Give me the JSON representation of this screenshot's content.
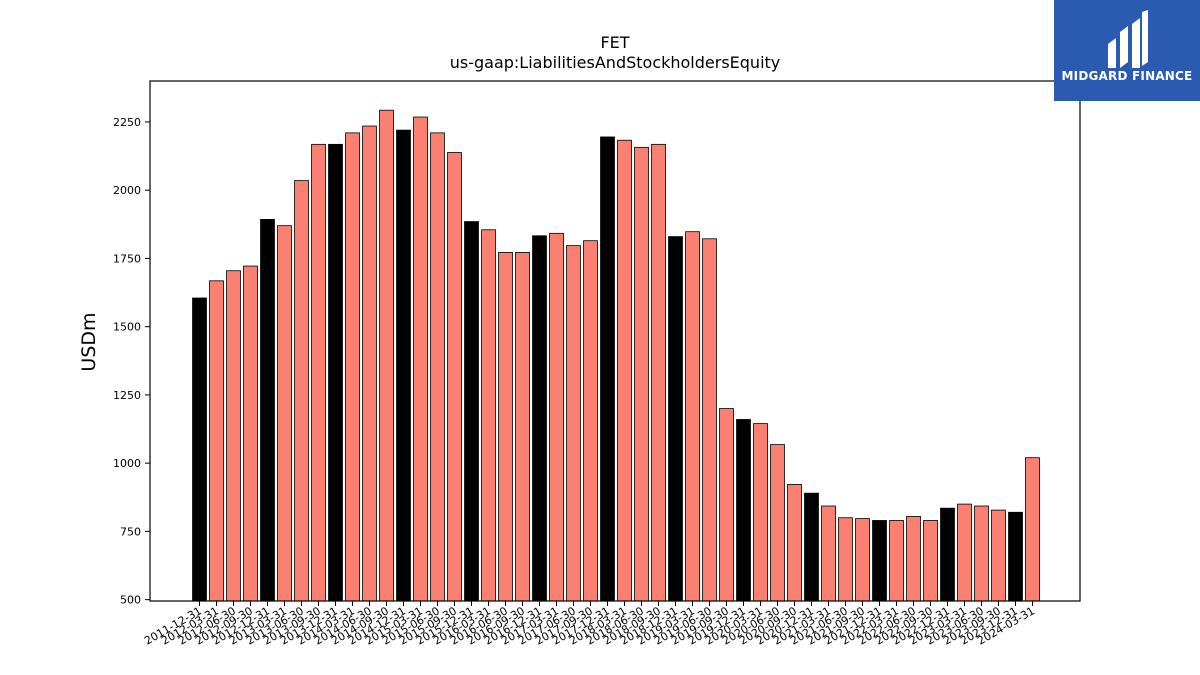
{
  "brand": {
    "name": "MIDGARD FINANCE",
    "logo_icon": "midgard-finance-logo-icon",
    "background_color": "#2a5bb1"
  },
  "chart_data": {
    "type": "bar",
    "title": "FET",
    "subtitle": "us-gaap:LiabilitiesAndStockholdersEquity",
    "xlabel": "",
    "ylabel": "USDm",
    "ylim": [
      495,
      2400
    ],
    "yticks": [
      500,
      750,
      1000,
      1250,
      1500,
      1750,
      2000,
      2250
    ],
    "grid": false,
    "colors": {
      "fiscal_year_end": "#000000",
      "quarter": "#fa8072",
      "edge": "#000000"
    },
    "categories": [
      "2011-12-31",
      "2012-03-31",
      "2012-06-30",
      "2012-09-30",
      "2012-12-31",
      "2013-03-31",
      "2013-06-30",
      "2013-09-30",
      "2013-12-31",
      "2014-03-31",
      "2014-06-30",
      "2014-09-30",
      "2014-12-31",
      "2015-03-31",
      "2015-06-30",
      "2015-09-30",
      "2015-12-31",
      "2016-03-31",
      "2016-06-30",
      "2016-09-30",
      "2016-12-31",
      "2017-03-31",
      "2017-06-30",
      "2017-09-30",
      "2017-12-31",
      "2018-03-31",
      "2018-06-30",
      "2018-09-30",
      "2018-12-31",
      "2019-03-31",
      "2019-06-30",
      "2019-09-30",
      "2019-12-31",
      "2020-03-31",
      "2020-06-30",
      "2020-09-30",
      "2020-12-31",
      "2021-03-31",
      "2021-06-30",
      "2021-09-30",
      "2021-12-31",
      "2022-03-31",
      "2022-06-30",
      "2022-09-30",
      "2022-12-31",
      "2023-03-31",
      "2023-06-30",
      "2023-09-30",
      "2023-12-31",
      "2024-03-31"
    ],
    "values": [
      1605,
      1668,
      1705,
      1722,
      1893,
      1870,
      2035,
      2168,
      2168,
      2210,
      2235,
      2293,
      2220,
      2268,
      2210,
      2138,
      1885,
      1855,
      1772,
      1772,
      1833,
      1842,
      1797,
      1815,
      2195,
      2183,
      2157,
      2168,
      1830,
      1848,
      1822,
      1200,
      1160,
      1145,
      1068,
      922,
      890,
      843,
      800,
      797,
      790,
      790,
      805,
      790,
      835,
      850,
      843,
      828,
      820,
      1020
    ],
    "fiscal_year_end": [
      true,
      false,
      false,
      false,
      true,
      false,
      false,
      false,
      true,
      false,
      false,
      false,
      true,
      false,
      false,
      false,
      true,
      false,
      false,
      false,
      true,
      false,
      false,
      false,
      true,
      false,
      false,
      false,
      true,
      false,
      false,
      false,
      true,
      false,
      false,
      false,
      true,
      false,
      false,
      false,
      true,
      false,
      false,
      false,
      true,
      false,
      false,
      false,
      true,
      false
    ]
  }
}
